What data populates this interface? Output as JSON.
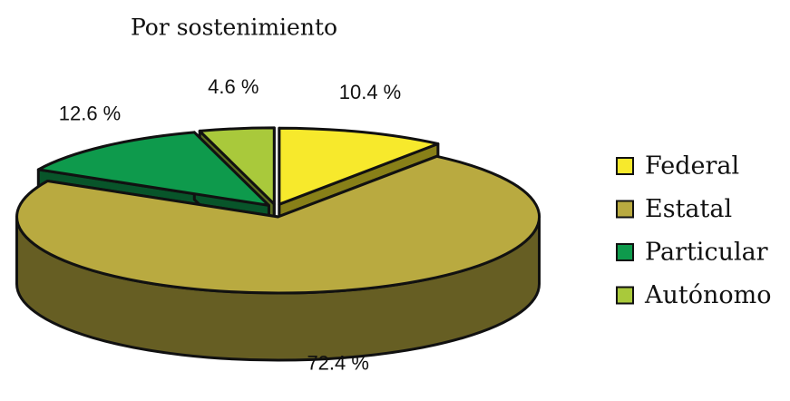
{
  "chart_data": {
    "type": "pie",
    "title": "Por sostenimiento",
    "categories": [
      "Federal",
      "Estatal",
      "Particular",
      "Autónomo"
    ],
    "values": [
      10.4,
      72.4,
      12.6,
      4.6
    ],
    "value_labels": [
      "10.4 %",
      "72.4 %",
      "12.6 %",
      "4.6 %"
    ],
    "colors": [
      "#f7e92c",
      "#b9aa40",
      "#0e9a4c",
      "#a9c93b"
    ],
    "legend": "right"
  }
}
